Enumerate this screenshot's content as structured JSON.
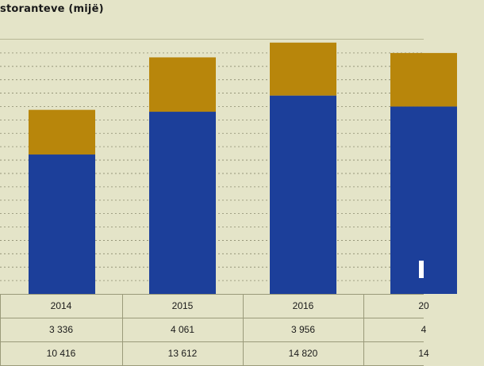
{
  "title": "storanteve (mijë)",
  "chart_data": {
    "type": "bar",
    "stacked": true,
    "categories": [
      "2014",
      "2015",
      "2016",
      "20"
    ],
    "series": [
      {
        "color": "#1c3f9a",
        "values": [
          10416,
          13612,
          14820,
          14000
        ]
      },
      {
        "color": "#b8860b",
        "values": [
          3336,
          4061,
          3956,
          4000
        ]
      }
    ],
    "ylim": [
      0,
      19000
    ],
    "grid": true
  },
  "table": {
    "rows": [
      {
        "cells": [
          "2014",
          "2015",
          "2016",
          "20"
        ]
      },
      {
        "cells": [
          "3 336",
          "4 061",
          "3 956",
          "4"
        ]
      },
      {
        "cells": [
          "10 416",
          "13 612",
          "14 820",
          "14"
        ]
      }
    ]
  }
}
